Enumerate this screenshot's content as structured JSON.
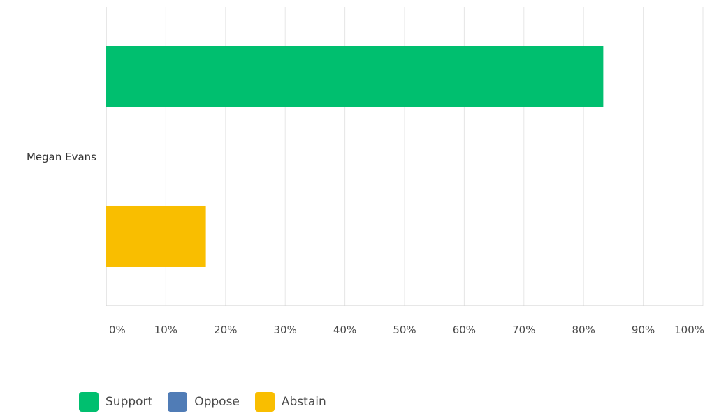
{
  "chart_data": {
    "type": "bar",
    "orientation": "horizontal",
    "categories": [
      "Megan Evans"
    ],
    "series": [
      {
        "name": "Support",
        "color": "#00bf6f",
        "values": [
          83.3
        ]
      },
      {
        "name": "Oppose",
        "color": "#507cb6",
        "values": [
          0
        ]
      },
      {
        "name": "Abstain",
        "color": "#f9be00",
        "values": [
          16.7
        ]
      }
    ],
    "x_ticks": [
      "0%",
      "10%",
      "20%",
      "30%",
      "40%",
      "50%",
      "60%",
      "70%",
      "80%",
      "90%",
      "100%"
    ],
    "xlim": [
      0,
      100
    ],
    "grid": true,
    "legend_position": "bottom-left"
  }
}
